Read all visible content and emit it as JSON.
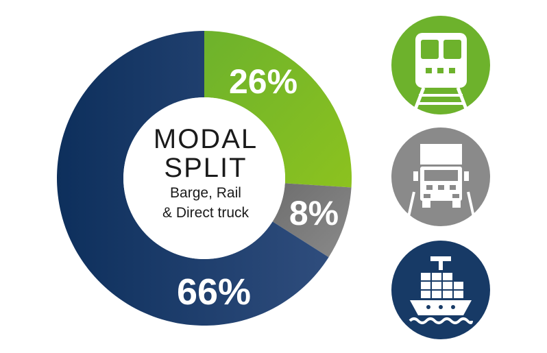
{
  "chart_data": {
    "type": "pie",
    "style": "donut",
    "center_title_lines": [
      "MODAL",
      "SPLIT"
    ],
    "center_subtitle_lines": [
      "Barge, Rail",
      "& Direct truck"
    ],
    "slices": [
      {
        "label_text": "26%",
        "value": 26,
        "color": "#6db22c",
        "color_end": "#8cc21f",
        "icon": "train-icon"
      },
      {
        "label_text": "8%",
        "value": 8,
        "color": "#6e6e6e",
        "color_end": "#8a8a8a",
        "icon": "truck-icon"
      },
      {
        "label_text": "66%",
        "value": 66,
        "color": "#0d2f5c",
        "color_end": "#2b4a7a",
        "icon": "container-ship-icon"
      }
    ]
  },
  "icons": [
    {
      "name": "train-icon",
      "color": "#6db22c"
    },
    {
      "name": "truck-icon",
      "color": "#8a8a8a"
    },
    {
      "name": "container-ship-icon",
      "color": "#173a66"
    }
  ]
}
